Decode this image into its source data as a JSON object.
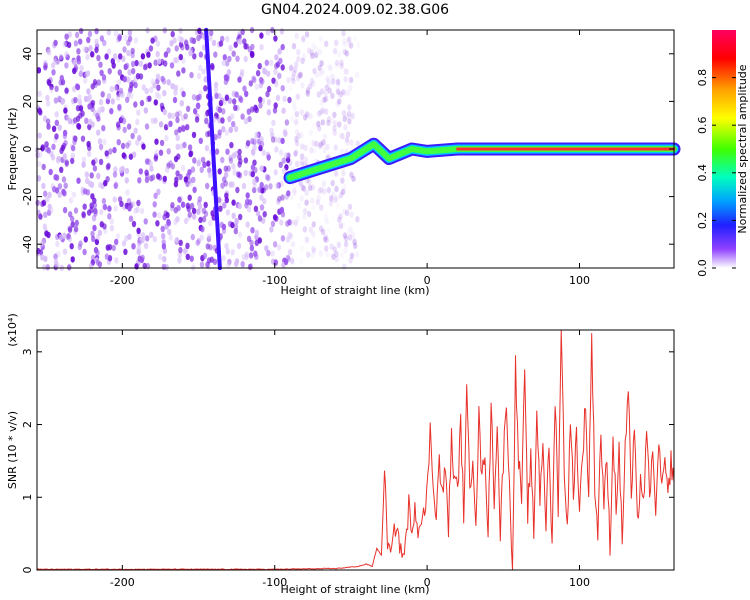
{
  "title": "GN04.2024.009.02.38.G06",
  "colors": {
    "frame": "#000000",
    "snr_line": "#e8312a",
    "scatter": "#8a2be2",
    "colorbar": [
      "#ff0000",
      "#ff8000",
      "#ffff00",
      "#80ff00",
      "#00ff00",
      "#00ffff",
      "#0080ff",
      "#0000ff",
      "#8000ff",
      "#ffffff"
    ]
  },
  "chart_data": [
    {
      "type": "heatmap",
      "name": "spectrogram",
      "xlabel": "Height of straight line (km)",
      "ylabel": "Frequency (Hz)",
      "xlim": [
        -256,
        162
      ],
      "ylim": [
        -50,
        50
      ],
      "xticks": [
        -200,
        -100,
        0,
        100
      ],
      "yticks": [
        -40,
        -20,
        0,
        20,
        40
      ],
      "colorbar": {
        "label": "Normalized spectral amplitude",
        "range": [
          0,
          1
        ],
        "ticks": [
          "0.0",
          "0.2",
          "0.4",
          "0.6",
          "0.8"
        ]
      },
      "noise_region_x": [
        -256,
        -65
      ],
      "diagonal_trace": {
        "x_start": -145,
        "y_start": 50,
        "x_end": -136,
        "y_end": -50
      },
      "signal_ridge": [
        {
          "x": -90,
          "y": -12
        },
        {
          "x": -70,
          "y": -8
        },
        {
          "x": -50,
          "y": -4
        },
        {
          "x": -35,
          "y": 2
        },
        {
          "x": -25,
          "y": -4
        },
        {
          "x": -10,
          "y": 0
        },
        {
          "x": 0,
          "y": -1
        },
        {
          "x": 20,
          "y": 0
        },
        {
          "x": 60,
          "y": 0
        },
        {
          "x": 100,
          "y": 0
        },
        {
          "x": 162,
          "y": 0
        }
      ]
    },
    {
      "type": "line",
      "name": "snr",
      "xlabel": "Height of straight line (km)",
      "ylabel": "SNR (10 * v/v)",
      "y_multiplier": "(x10⁴)",
      "xlim": [
        -256,
        162
      ],
      "ylim": [
        0,
        3.3
      ],
      "xticks": [
        -200,
        -100,
        0,
        100
      ],
      "yticks": [
        0,
        1,
        2,
        3
      ],
      "series_color": "#e8312a",
      "points": [
        [
          -256,
          0.01
        ],
        [
          -200,
          0.01
        ],
        [
          -150,
          0.01
        ],
        [
          -100,
          0.01
        ],
        [
          -60,
          0.02
        ],
        [
          -45,
          0.05
        ],
        [
          -40,
          0.08
        ],
        [
          -36,
          0.05
        ],
        [
          -33,
          0.3
        ],
        [
          -30,
          0.2
        ],
        [
          -28,
          1.3
        ],
        [
          -26,
          0.4
        ],
        [
          -24,
          0.2
        ],
        [
          -20,
          0.7
        ],
        [
          -18,
          0.3
        ],
        [
          -15,
          0.2
        ],
        [
          -12,
          0.9
        ],
        [
          -10,
          0.4
        ],
        [
          -8,
          1.0
        ],
        [
          -6,
          0.5
        ],
        [
          -3,
          0.9
        ],
        [
          -1,
          0.7
        ],
        [
          2,
          1.9
        ],
        [
          4,
          1.2
        ],
        [
          6,
          0.8
        ],
        [
          8,
          1.5
        ],
        [
          10,
          1.0
        ],
        [
          12,
          1.4
        ],
        [
          14,
          0.6
        ],
        [
          16,
          1.8
        ],
        [
          18,
          1.2
        ],
        [
          20,
          1.1
        ],
        [
          22,
          2.0
        ],
        [
          24,
          0.8
        ],
        [
          26,
          2.4
        ],
        [
          28,
          1.1
        ],
        [
          30,
          1.6
        ],
        [
          32,
          0.7
        ],
        [
          34,
          2.1
        ],
        [
          36,
          1.2
        ],
        [
          38,
          1.7
        ],
        [
          40,
          0.4
        ],
        [
          42,
          2.3
        ],
        [
          44,
          1.0
        ],
        [
          46,
          2.0
        ],
        [
          48,
          0.5
        ],
        [
          50,
          1.5
        ],
        [
          52,
          2.4
        ],
        [
          54,
          1.1
        ],
        [
          56,
          0.0
        ],
        [
          58,
          2.8
        ],
        [
          60,
          1.5
        ],
        [
          62,
          1.0
        ],
        [
          64,
          2.6
        ],
        [
          66,
          0.8
        ],
        [
          68,
          1.5
        ],
        [
          70,
          0.5
        ],
        [
          72,
          2.2
        ],
        [
          74,
          1.0
        ],
        [
          76,
          1.8
        ],
        [
          78,
          0.6
        ],
        [
          80,
          1.7
        ],
        [
          82,
          0.3
        ],
        [
          84,
          2.4
        ],
        [
          86,
          0.9
        ],
        [
          88,
          3.3
        ],
        [
          90,
          1.4
        ],
        [
          92,
          0.6
        ],
        [
          94,
          2.0
        ],
        [
          96,
          1.1
        ],
        [
          98,
          1.9
        ],
        [
          100,
          0.8
        ],
        [
          102,
          1.6
        ],
        [
          104,
          2.3
        ],
        [
          106,
          1.0
        ],
        [
          108,
          3.2
        ],
        [
          110,
          1.2
        ],
        [
          112,
          0.5
        ],
        [
          114,
          1.9
        ],
        [
          116,
          0.9
        ],
        [
          118,
          1.5
        ],
        [
          120,
          0.3
        ],
        [
          122,
          1.8
        ],
        [
          124,
          0.9
        ],
        [
          126,
          1.6
        ],
        [
          128,
          0.4
        ],
        [
          130,
          1.7
        ],
        [
          132,
          2.5
        ],
        [
          134,
          1.0
        ],
        [
          136,
          1.9
        ],
        [
          138,
          0.6
        ],
        [
          140,
          1.3
        ],
        [
          142,
          0.9
        ],
        [
          144,
          1.8
        ],
        [
          146,
          1.1
        ],
        [
          148,
          1.5
        ],
        [
          150,
          0.9
        ],
        [
          152,
          1.6
        ],
        [
          154,
          1.2
        ],
        [
          156,
          1.4
        ],
        [
          158,
          1.0
        ],
        [
          160,
          1.5
        ],
        [
          162,
          1.2
        ]
      ]
    }
  ]
}
